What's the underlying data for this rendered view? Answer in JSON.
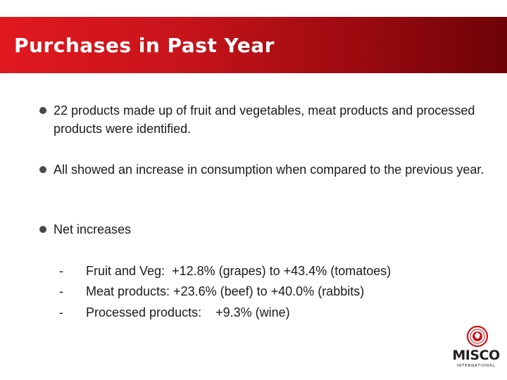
{
  "slide": {
    "title": "Purchases in Past Year",
    "bullets": [
      {
        "text": "22 products made up of fruit and vegetables, meat products and processed products were identified."
      },
      {
        "text": "All showed an increase in consumption when compared to the previous year."
      },
      {
        "text": "Net increases"
      }
    ],
    "sub_items": [
      {
        "marker": "-",
        "text": "Fruit and Veg:  +12.8% (grapes) to +43.4% (tomatoes)"
      },
      {
        "marker": "-",
        "text": "Meat products: +23.6% (beef) to +40.0% (rabbits)"
      },
      {
        "marker": "-",
        "text": "Processed products:    +9.3% (wine)"
      }
    ]
  },
  "logo": {
    "name": "MISCO",
    "subtitle": "INTERNATIONAL"
  },
  "colors": {
    "title_bar_start": "#e1191e",
    "title_bar_end": "#6e0306",
    "logo_red": "#c8141b"
  }
}
